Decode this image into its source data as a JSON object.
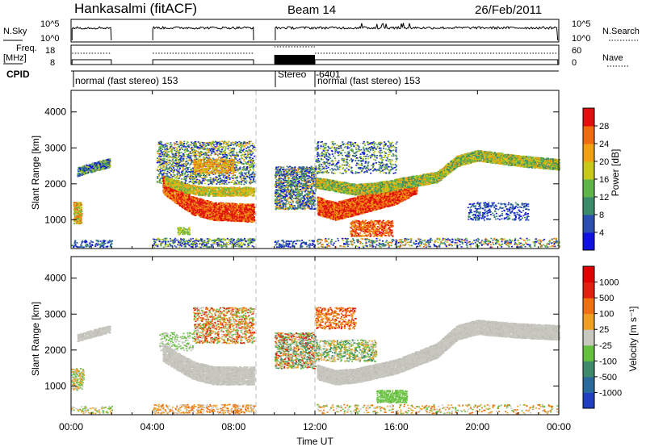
{
  "header": {
    "station": "Hankasalmi (fitACF)",
    "beam": "Beam 14",
    "date": "26/Feb/2011"
  },
  "strips": {
    "nsky_label": "N.Sky",
    "nsearch_label": "N.Search",
    "nsky_tick_top": "10^5",
    "nsky_tick_bottom": "10^0",
    "freq_label": "Freq.",
    "freq_unit": "[MHz]",
    "freq_tick_top": "18",
    "freq_tick_bottom": "8",
    "nave_label": "Nave",
    "nave_tick_top": "60",
    "nave_tick_bottom": "0",
    "cpid_label": "CPID",
    "cpid_segments": [
      {
        "text": "normal (fast stereo) 153",
        "start_hour": 0
      },
      {
        "text": "Stereo",
        "start_hour": 10
      },
      {
        "text": "-6401",
        "start_hour": 12
      },
      {
        "text": "normal (fast stereo) 153",
        "start_hour": 12
      }
    ]
  },
  "chart_data": [
    {
      "type": "heatmap",
      "name": "power",
      "ylabel": "Slant Range [km]",
      "yticks": [
        "1000",
        "2000",
        "3000",
        "4000"
      ],
      "ylim": [
        200,
        4600
      ],
      "xlim": [
        0,
        24
      ],
      "colorbar_label": "Power [dB]",
      "colorbar_ticks": [
        "4",
        "8",
        "12",
        "16",
        "20",
        "24",
        "28"
      ],
      "colorbar_colors": [
        "#1010e0",
        "#2a4fb0",
        "#3b8a6a",
        "#5fb44a",
        "#c8c818",
        "#f0a010",
        "#f06a10",
        "#e01010"
      ],
      "data_gaps_hours": [
        [
          2,
          4
        ],
        [
          9,
          10
        ]
      ]
    },
    {
      "type": "heatmap",
      "name": "velocity",
      "ylabel": "Slant Range [km]",
      "yticks": [
        "1000",
        "2000",
        "3000",
        "4000"
      ],
      "ylim": [
        200,
        4600
      ],
      "xlim": [
        0,
        24
      ],
      "colorbar_label": "Velocity [m s⁻¹]",
      "colorbar_ticks": [
        "1000",
        "500",
        "100",
        "25",
        "-25",
        "-100",
        "-500",
        "-1000"
      ],
      "colorbar_colors": [
        "#2040c0",
        "#2a6a9a",
        "#3f8a6a",
        "#66c040",
        "#c8c8c0",
        "#f0a020",
        "#f07010",
        "#e02010",
        "#e00000"
      ],
      "data_gaps_hours": [
        [
          2,
          4
        ],
        [
          9,
          10
        ]
      ]
    }
  ],
  "xaxis": {
    "ticks": [
      "00:00",
      "04:00",
      "08:00",
      "12:00",
      "16:00",
      "20:00",
      "00:00"
    ],
    "label": "Time UT"
  }
}
